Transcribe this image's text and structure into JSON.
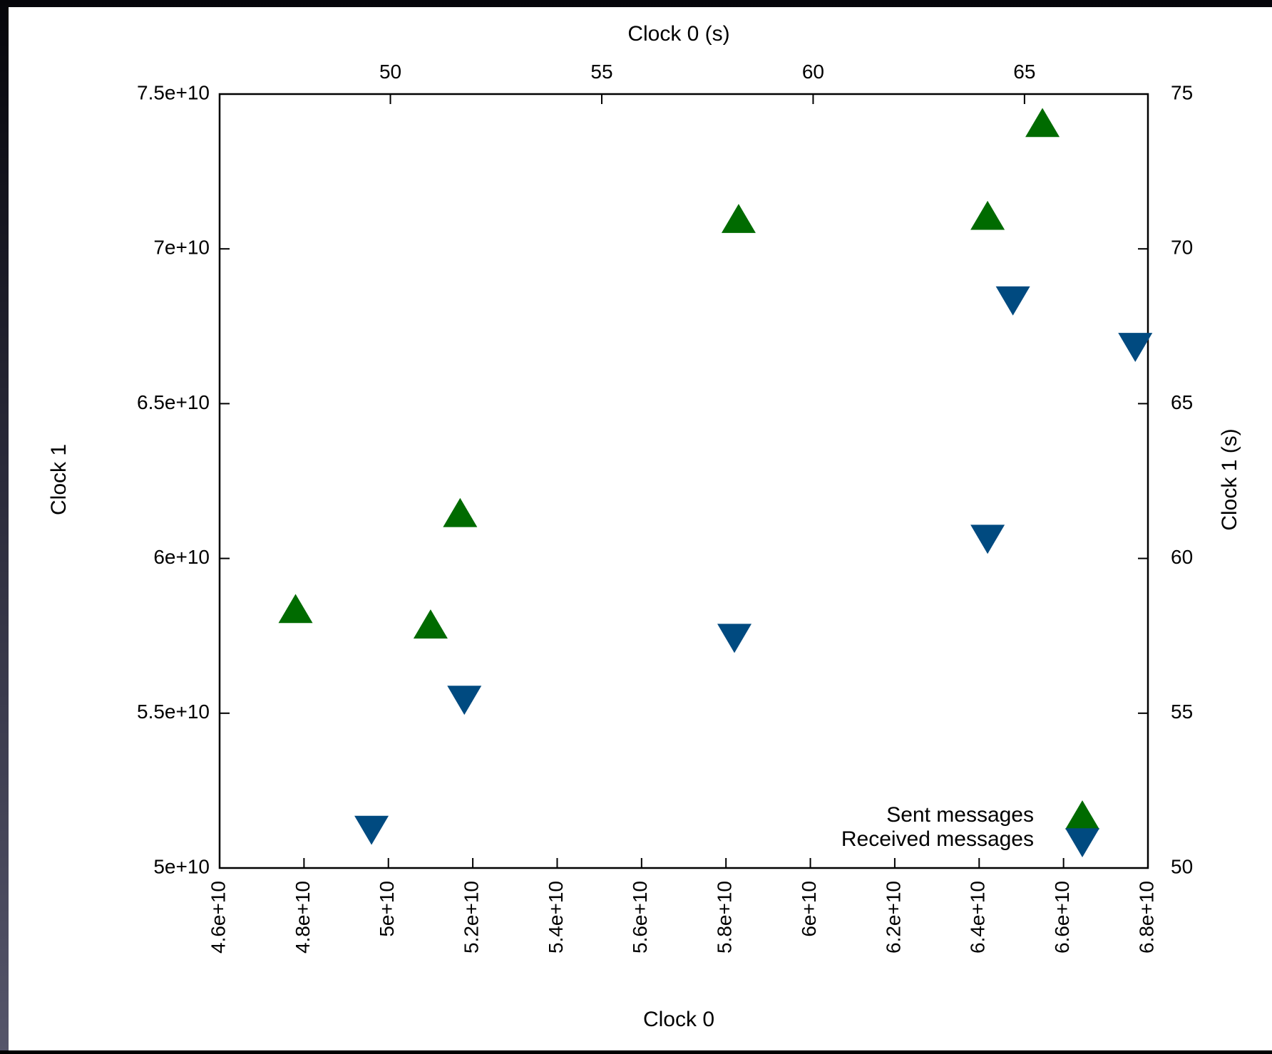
{
  "chart_data": {
    "type": "scatter",
    "xlabel": "Clock 0",
    "ylabel": "Clock 1",
    "x2label": "Clock 0 (s)",
    "y2label": "Clock 1 (s)",
    "xlim": [
      46000000000,
      68000000000
    ],
    "ylim": [
      50000000000,
      75000000000
    ],
    "x2lim": [
      45.96,
      67.92
    ],
    "y2lim": [
      50,
      75
    ],
    "x_ticks": [
      {
        "value": 46000000000,
        "label": "4.6e+10"
      },
      {
        "value": 48000000000,
        "label": "4.8e+10"
      },
      {
        "value": 50000000000,
        "label": "5e+10"
      },
      {
        "value": 52000000000,
        "label": "5.2e+10"
      },
      {
        "value": 54000000000,
        "label": "5.4e+10"
      },
      {
        "value": 56000000000,
        "label": "5.6e+10"
      },
      {
        "value": 58000000000,
        "label": "5.8e+10"
      },
      {
        "value": 60000000000,
        "label": "6e+10"
      },
      {
        "value": 62000000000,
        "label": "6.2e+10"
      },
      {
        "value": 64000000000,
        "label": "6.4e+10"
      },
      {
        "value": 66000000000,
        "label": "6.6e+10"
      },
      {
        "value": 68000000000,
        "label": "6.8e+10"
      }
    ],
    "y_ticks": [
      {
        "value": 50000000000,
        "label": "5e+10"
      },
      {
        "value": 55000000000,
        "label": "5.5e+10"
      },
      {
        "value": 60000000000,
        "label": "6e+10"
      },
      {
        "value": 65000000000,
        "label": "6.5e+10"
      },
      {
        "value": 70000000000,
        "label": "7e+10"
      },
      {
        "value": 75000000000,
        "label": "7.5e+10"
      }
    ],
    "x2_ticks": [
      {
        "value": 50,
        "label": "50"
      },
      {
        "value": 55,
        "label": "55"
      },
      {
        "value": 60,
        "label": "60"
      },
      {
        "value": 65,
        "label": "65"
      }
    ],
    "y2_ticks": [
      {
        "value": 50,
        "label": "50"
      },
      {
        "value": 55,
        "label": "55"
      },
      {
        "value": 60,
        "label": "60"
      },
      {
        "value": 65,
        "label": "65"
      },
      {
        "value": 70,
        "label": "70"
      },
      {
        "value": 75,
        "label": "75"
      }
    ],
    "legend_position": "bottom-right",
    "grid": false,
    "series": [
      {
        "name": "Sent messages",
        "marker": "triangle-up",
        "color": "#006b00",
        "points": [
          {
            "x": 47800000000,
            "y": 58300000000
          },
          {
            "x": 51000000000,
            "y": 57800000000
          },
          {
            "x": 51700000000,
            "y": 61400000000
          },
          {
            "x": 58300000000,
            "y": 70900000000
          },
          {
            "x": 64200000000,
            "y": 71000000000
          },
          {
            "x": 65500000000,
            "y": 74000000000
          }
        ]
      },
      {
        "name": "Received messages",
        "marker": "triangle-down",
        "color": "#004a80",
        "points": [
          {
            "x": 49600000000,
            "y": 51300000000
          },
          {
            "x": 51800000000,
            "y": 55500000000
          },
          {
            "x": 58200000000,
            "y": 57500000000
          },
          {
            "x": 64200000000,
            "y": 60700000000
          },
          {
            "x": 64800000000,
            "y": 68400000000
          },
          {
            "x": 67700000000,
            "y": 66900000000
          }
        ]
      }
    ]
  }
}
